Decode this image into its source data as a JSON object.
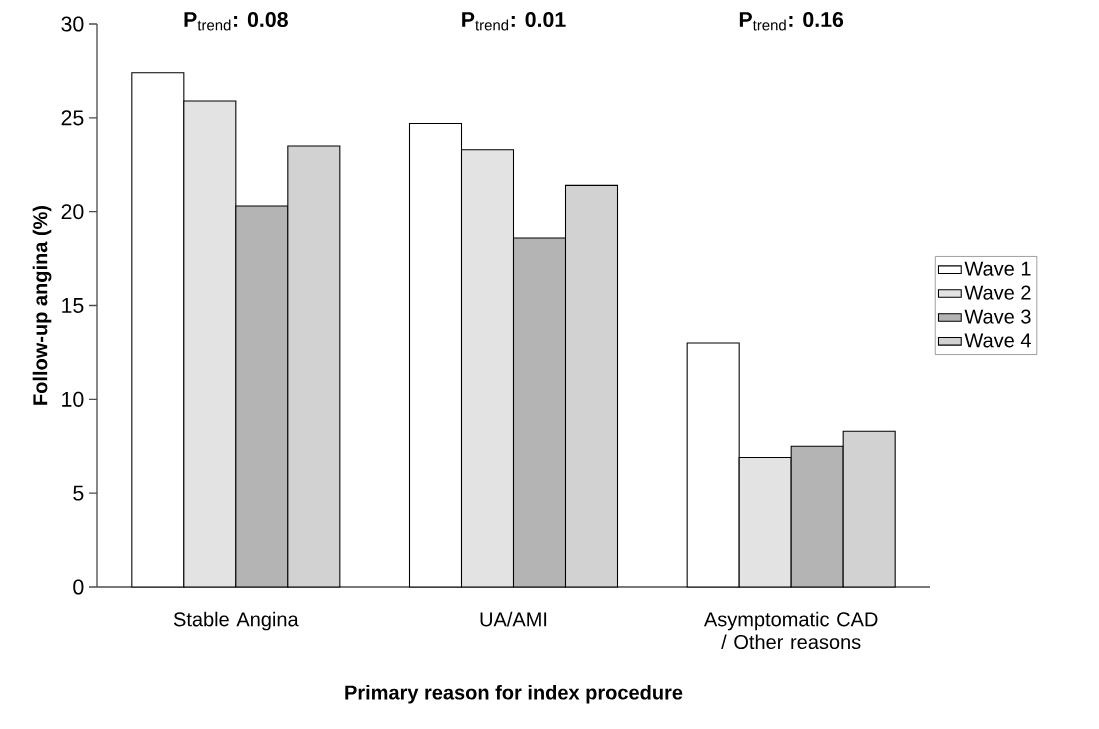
{
  "chart_data": {
    "type": "bar",
    "xlabel": "Primary reason for index procedure",
    "ylabel": "Follow-up angina (%)",
    "categories": [
      "Stable Angina",
      "UA/AMI",
      "Asymptomatic CAD / Other reasons"
    ],
    "series": [
      {
        "name": "Wave 1",
        "color": "#ffffff",
        "values": [
          27.4,
          24.7,
          13.0
        ]
      },
      {
        "name": "Wave 2",
        "color": "#e3e3e3",
        "values": [
          25.9,
          23.3,
          6.9
        ]
      },
      {
        "name": "Wave 3",
        "color": "#b4b4b4",
        "values": [
          20.3,
          18.6,
          7.5
        ]
      },
      {
        "name": "Wave 4",
        "color": "#d2d2d2",
        "values": [
          23.5,
          21.4,
          8.3
        ]
      }
    ],
    "annotations": [
      "**P**$_{trend}$**: 0.08**",
      "**P**$_{trend}$**: 0.01**",
      "**P**$_{trend}$**: 0.16**"
    ],
    "ylim": [
      0,
      30
    ],
    "yticks": [
      0,
      5,
      10,
      15,
      20,
      25,
      30
    ],
    "legend": "right",
    "grid": false
  }
}
